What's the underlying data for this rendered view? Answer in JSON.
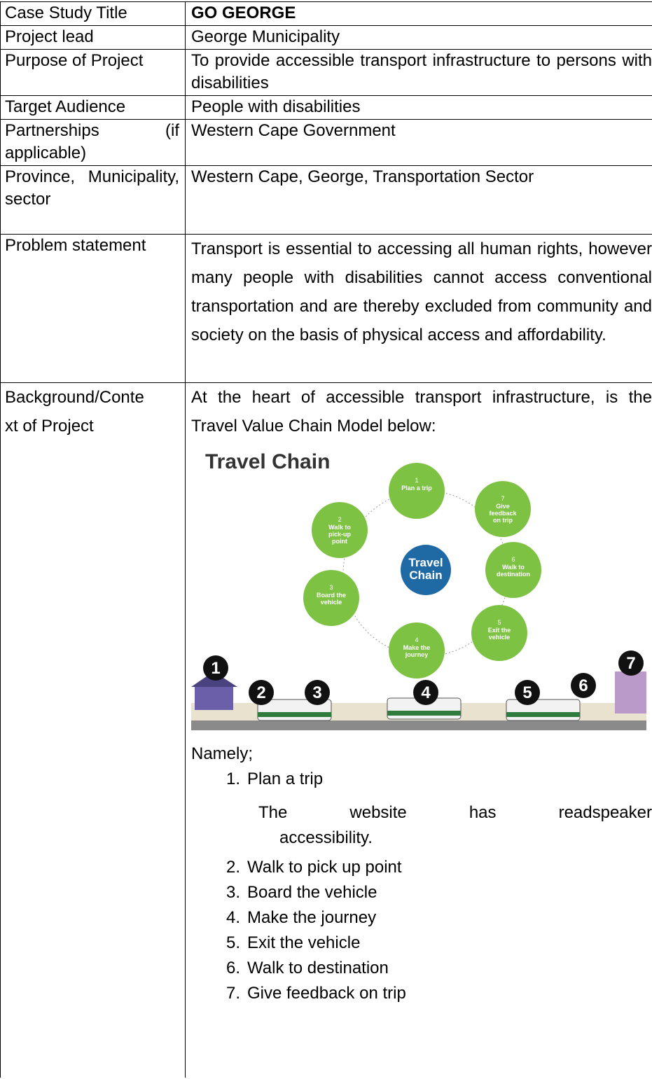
{
  "table": {
    "rows": [
      [
        "Case Study Title",
        "GO GEORGE"
      ],
      [
        "Project lead",
        "George Municipality"
      ],
      [
        "Purpose of Project",
        "To provide accessible transport infrastructure to persons with disabilities"
      ],
      [
        "Target Audience",
        "People with disabilities"
      ],
      [
        "Partnerships (if applicable)",
        "Western Cape Government"
      ],
      [
        "Province, Municipality, sector",
        "Western Cape, George, Transportation Sector"
      ],
      [
        "Problem statement",
        "Transport is essential to accessing all human rights, however many people with disabilities cannot access conventional transportation and are thereby excluded from community and society on the basis of physical access and affordability."
      ]
    ],
    "background": {
      "label": [
        "Background/Conte",
        "xt of Project"
      ],
      "intro": "At the heart of accessible transport infrastructure, is the Travel Value Chain Model below:",
      "figure": {
        "title": "Travel Chain",
        "center": [
          "Travel",
          "Chain"
        ],
        "steps": [
          {
            "number": "1",
            "lines": [
              "Plan a trip"
            ]
          },
          {
            "number": "2",
            "lines": [
              "Walk to",
              "pick-up",
              "point"
            ]
          },
          {
            "number": "3",
            "lines": [
              "Board the",
              "vehicle"
            ]
          },
          {
            "number": "4",
            "lines": [
              "Make the",
              "journey"
            ]
          },
          {
            "number": "5",
            "lines": [
              "Exit the",
              "vehicle"
            ]
          },
          {
            "number": "6",
            "lines": [
              "Walk to",
              "destination"
            ]
          },
          {
            "number": "7",
            "lines": [
              "Give",
              "feedback",
              "on trip"
            ]
          }
        ],
        "badges": [
          "1",
          "2",
          "3",
          "4",
          "5",
          "6",
          "7"
        ]
      },
      "list_intro": "Namely;",
      "items": [
        {
          "number": "1.",
          "text": "Plan a trip",
          "note": "The website has readspeaker accessibility."
        },
        {
          "number": "2.",
          "text": "Walk to pick up point"
        },
        {
          "number": "3.",
          "text": "Board the vehicle"
        },
        {
          "number": "4.",
          "text": "Make the journey"
        },
        {
          "number": "5.",
          "text": "Exit the vehicle"
        },
        {
          "number": "6.",
          "text": "Walk to destination"
        },
        {
          "number": "7.",
          "text": "Give feedback on trip"
        }
      ]
    }
  }
}
